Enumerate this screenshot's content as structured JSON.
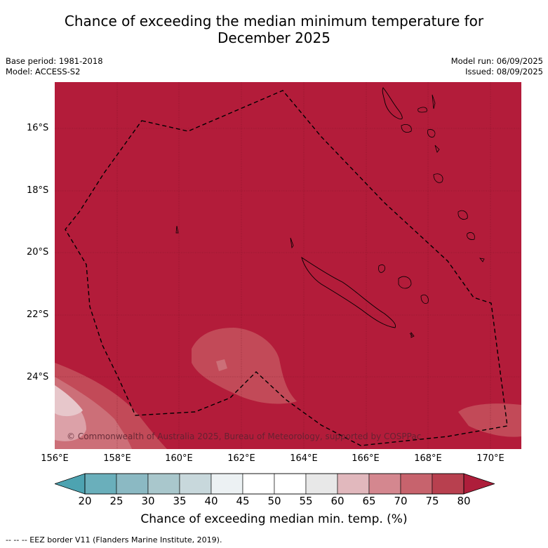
{
  "title_line1": "Chance of exceeding the median minimum temperature for",
  "title_line2": "December 2025",
  "meta": {
    "base_period": "Base period: 1981-2018",
    "model": "Model: ACCESS-S2",
    "model_run": "Model run: 06/09/2025",
    "issued": "Issued: 08/09/2025"
  },
  "lat_labels": [
    "16°S",
    "18°S",
    "20°S",
    "22°S",
    "24°S"
  ],
  "lon_labels": [
    "156°E",
    "158°E",
    "160°E",
    "162°E",
    "164°E",
    "166°E",
    "168°E",
    "170°E"
  ],
  "copyright": "© Commonwealth of Australia 2025, Bureau of Meteorology, supported by COSPPac",
  "colorbar": {
    "ticks": [
      "20",
      "25",
      "30",
      "35",
      "40",
      "45",
      "50",
      "55",
      "60",
      "65",
      "70",
      "75",
      "80"
    ],
    "colors": [
      "#4da3b1",
      "#6aafbb",
      "#8bb9c3",
      "#a9c7cc",
      "#c8d8dc",
      "#ecf1f3",
      "#ffffff",
      "#ffffff",
      "#e8e8e8",
      "#e1b8bd",
      "#d4878f",
      "#c7636d",
      "#b8404f",
      "#ae1e3b"
    ],
    "label": "Chance of exceeding median min. temp. (%)"
  },
  "footer": "--  --  -- EEZ border V11 (Flanders Marine Institute, 2019).",
  "map_colors": {
    "base": "#b31c3a",
    "band_75": "#c24a58",
    "band_70": "#cc6f78",
    "band_65": "#dca1a8",
    "band_60": "#e7c7cb"
  }
}
